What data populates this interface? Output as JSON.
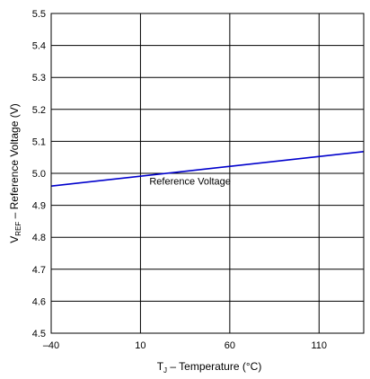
{
  "chart_data": {
    "type": "line",
    "xlabel": {
      "base": "T",
      "sub": "J",
      "rest": " – Temperature (°C)"
    },
    "ylabel": {
      "base": "V",
      "sub": "REF",
      "rest": " – Reference Voltage (V)"
    },
    "xlim": [
      -40,
      135
    ],
    "ylim": [
      4.5,
      5.5
    ],
    "x_ticks": [
      -40,
      10,
      60,
      110
    ],
    "y_ticks": [
      4.5,
      4.6,
      4.7,
      4.8,
      4.9,
      5.0,
      5.1,
      5.2,
      5.3,
      5.4,
      5.5
    ],
    "x_tick_labels": [
      "–40",
      "10",
      "60",
      "110"
    ],
    "y_tick_labels": [
      "4.5",
      "4.6",
      "4.7",
      "4.8",
      "4.9",
      "5.0",
      "5.1",
      "5.2",
      "5.3",
      "5.4",
      "5.5"
    ],
    "grid": true,
    "series": [
      {
        "name": "Reference Voltage",
        "color": "#0000cc",
        "x": [
          -40,
          135
        ],
        "y": [
          4.96,
          5.068
        ]
      }
    ],
    "annotations": [
      {
        "text": "Reference Voltage",
        "x": 15,
        "y": 4.965
      }
    ]
  }
}
